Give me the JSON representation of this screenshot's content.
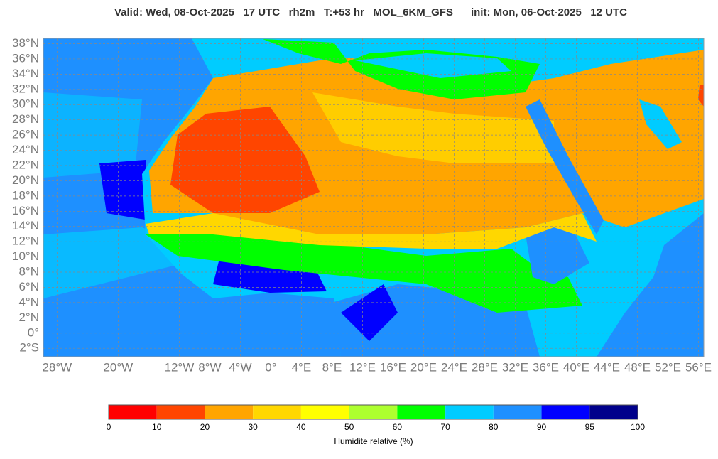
{
  "title": "Valid: Wed, 08-Oct-2025   17 UTC   rh2m   T:+53 hr   MOL_6KM_GFS      init: Mon, 06-Oct-2025   12 UTC",
  "map": {
    "xlim": [
      -29.8,
      56.7
    ],
    "ylim": [
      -3.1,
      38.7
    ],
    "grid": true,
    "xticks": [
      {
        "value": -28,
        "label": "28°W"
      },
      {
        "value": -20,
        "label": "20°W"
      },
      {
        "value": -12,
        "label": "12°W"
      },
      {
        "value": -8,
        "label": "8°W"
      },
      {
        "value": -4,
        "label": "4°W"
      },
      {
        "value": 0,
        "label": "0°"
      },
      {
        "value": 4,
        "label": "4°E"
      },
      {
        "value": 8,
        "label": "8°E"
      },
      {
        "value": 12,
        "label": "12°E"
      },
      {
        "value": 16,
        "label": "16°E"
      },
      {
        "value": 20,
        "label": "20°E"
      },
      {
        "value": 24,
        "label": "24°E"
      },
      {
        "value": 28,
        "label": "28°E"
      },
      {
        "value": 32,
        "label": "32°E"
      },
      {
        "value": 36,
        "label": "36°E"
      },
      {
        "value": 40,
        "label": "40°E"
      },
      {
        "value": 44,
        "label": "44°E"
      },
      {
        "value": 48,
        "label": "48°E"
      },
      {
        "value": 52,
        "label": "52°E"
      },
      {
        "value": 56,
        "label": "56°E"
      }
    ],
    "yticks": [
      {
        "value": 38,
        "label": "38°N"
      },
      {
        "value": 36,
        "label": "36°N"
      },
      {
        "value": 34,
        "label": "34°N"
      },
      {
        "value": 32,
        "label": "32°N"
      },
      {
        "value": 30,
        "label": "30°N"
      },
      {
        "value": 28,
        "label": "28°N"
      },
      {
        "value": 26,
        "label": "26°N"
      },
      {
        "value": 24,
        "label": "24°N"
      },
      {
        "value": 22,
        "label": "22°N"
      },
      {
        "value": 20,
        "label": "20°N"
      },
      {
        "value": 18,
        "label": "18°N"
      },
      {
        "value": 16,
        "label": "16°N"
      },
      {
        "value": 14,
        "label": "14°N"
      },
      {
        "value": 12,
        "label": "12°N"
      },
      {
        "value": 10,
        "label": "10°N"
      },
      {
        "value": 8,
        "label": "8°N"
      },
      {
        "value": 6,
        "label": "6°N"
      },
      {
        "value": 4,
        "label": "4°N"
      },
      {
        "value": 2,
        "label": "2°N"
      },
      {
        "value": 0,
        "label": "0°"
      },
      {
        "value": -2,
        "label": "2°S"
      }
    ]
  },
  "colorbar": {
    "ticks": [
      0,
      10,
      20,
      30,
      40,
      50,
      60,
      70,
      80,
      90,
      95,
      100
    ],
    "colors": [
      "#ff0000",
      "#ff4500",
      "#ffa500",
      "#ffd700",
      "#ffff00",
      "#adff2f",
      "#00ff00",
      "#00ccff",
      "#1e90ff",
      "#0000ff",
      "#00008b"
    ],
    "label": "Humidite relative (%)"
  }
}
